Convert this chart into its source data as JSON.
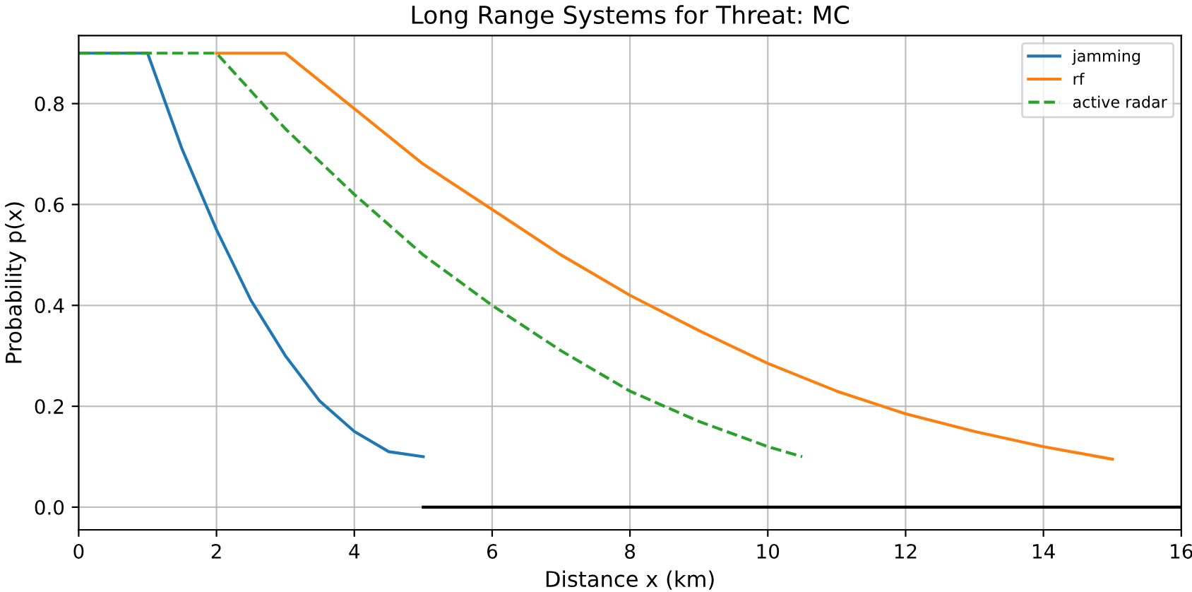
{
  "chart_data": {
    "type": "line",
    "title": "Long Range Systems for Threat: MC",
    "xlabel": "Distance x (km)",
    "ylabel": "Probability p(x)",
    "xlim": [
      0,
      16
    ],
    "xticks": [
      0,
      2,
      4,
      6,
      8,
      10,
      12,
      14,
      16
    ],
    "ylim": [
      -0.045,
      0.935
    ],
    "yticks": [
      {
        "value": 0,
        "label": "0.0"
      },
      0.2,
      0.4,
      0.6,
      0.8
    ],
    "grid": true,
    "legend": "top right",
    "line_style": "solid",
    "series": [
      {
        "name": "jamming",
        "color": "#1f77b4",
        "x": [
          0,
          1,
          1.5,
          2,
          2.5,
          3,
          3.5,
          4,
          4.5,
          5
        ],
        "values": [
          0.9,
          0.9,
          0.71,
          0.55,
          0.41,
          0.3,
          0.21,
          0.15,
          0.11,
          0.1
        ]
      },
      {
        "name": "rf",
        "color": "#ff7f0e",
        "x": [
          2,
          3,
          4,
          5,
          6,
          7,
          8,
          9,
          10,
          11,
          12,
          13,
          14,
          15
        ],
        "values": [
          0.9,
          0.9,
          0.79,
          0.68,
          0.59,
          0.5,
          0.42,
          0.35,
          0.285,
          0.23,
          0.185,
          0.15,
          0.12,
          0.095
        ]
      },
      {
        "name": "active radar",
        "color": "#2ca02c",
        "line_style": "dashed",
        "x": [
          0,
          2,
          3,
          4,
          5,
          6,
          7,
          8,
          9,
          10,
          10.5
        ],
        "values": [
          0.9,
          0.9,
          0.75,
          0.62,
          0.5,
          0.4,
          0.31,
          0.23,
          0.17,
          0.12,
          0.1
        ]
      },
      {
        "color": "#000000",
        "x": [
          5,
          16
        ],
        "values": [
          0,
          0
        ]
      }
    ]
  }
}
